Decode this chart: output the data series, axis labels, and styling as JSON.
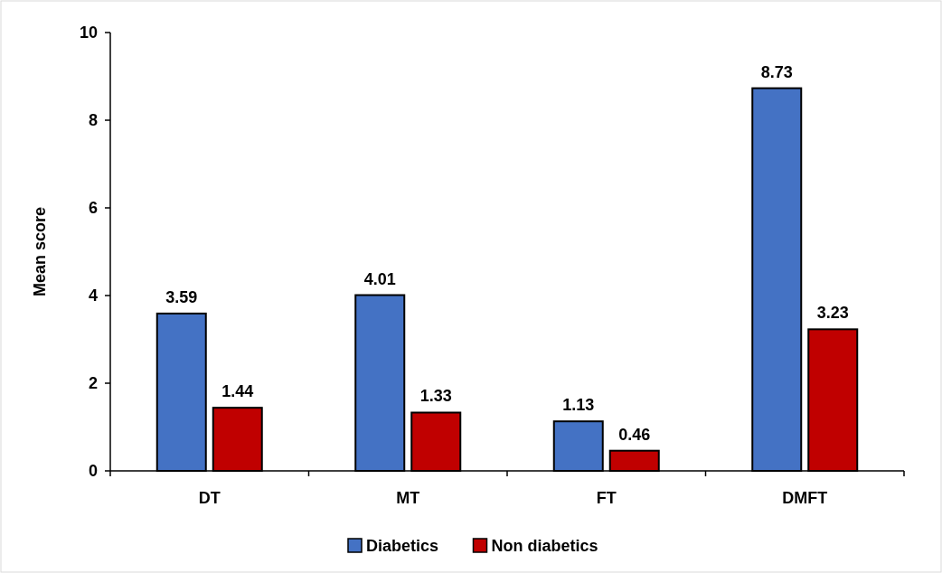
{
  "chart_data": {
    "type": "bar",
    "ylabel": "Mean score",
    "categories": [
      "DT",
      "MT",
      "FT",
      "DMFT"
    ],
    "series": [
      {
        "name": "Diabetics",
        "color": "#4472c4",
        "values": [
          3.59,
          4.01,
          1.13,
          8.73
        ]
      },
      {
        "name": "Non diabetics",
        "color": "#c00000",
        "values": [
          1.44,
          1.33,
          0.46,
          3.23
        ]
      }
    ],
    "ylim": [
      0,
      10
    ],
    "yticks": [
      0,
      2,
      4,
      6,
      8,
      10
    ],
    "data_labels": true,
    "legend": "bottom",
    "grid": false
  }
}
